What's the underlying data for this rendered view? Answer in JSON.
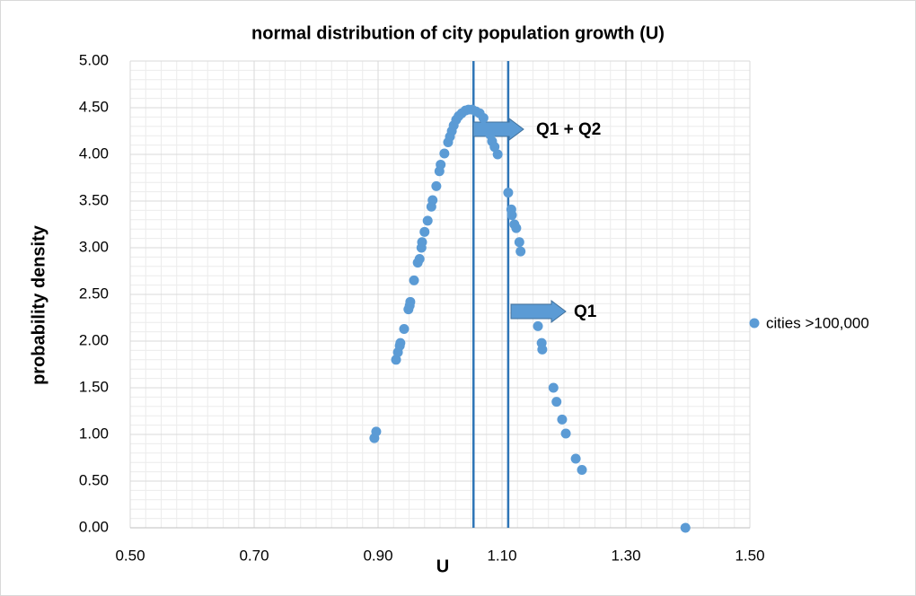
{
  "chart_data": {
    "type": "scatter",
    "title": "normal distribution of city population growth (U)",
    "x_label": "U",
    "y_label": "probability density",
    "series": [
      {
        "name": "cities >100,000",
        "color": "#5b9bd5",
        "x": [
          0.894,
          0.897,
          0.929,
          0.932,
          0.935,
          0.936,
          0.942,
          0.949,
          0.951,
          0.952,
          0.958,
          0.964,
          0.967,
          0.97,
          0.971,
          0.975,
          0.98,
          0.986,
          0.988,
          0.994,
          0.999,
          1.001,
          1.007,
          1.013,
          1.016,
          1.019,
          1.022,
          1.026,
          1.03,
          1.035,
          1.041,
          1.046,
          1.052,
          1.058,
          1.064,
          1.07,
          1.081,
          1.084,
          1.088,
          1.093,
          1.11,
          1.115,
          1.116,
          1.12,
          1.123,
          1.128,
          1.13,
          1.158,
          1.164,
          1.165,
          1.183,
          1.188,
          1.197,
          1.203,
          1.219,
          1.229,
          1.396
        ],
        "values": [
          0.96,
          1.03,
          1.8,
          1.88,
          1.95,
          1.98,
          2.13,
          2.34,
          2.38,
          2.42,
          2.65,
          2.84,
          2.88,
          3.0,
          3.06,
          3.17,
          3.29,
          3.44,
          3.51,
          3.66,
          3.82,
          3.89,
          4.01,
          4.13,
          4.19,
          4.25,
          4.31,
          4.37,
          4.41,
          4.44,
          4.47,
          4.48,
          4.48,
          4.46,
          4.44,
          4.39,
          4.21,
          4.14,
          4.08,
          4.0,
          3.59,
          3.41,
          3.35,
          3.25,
          3.21,
          3.06,
          2.96,
          2.16,
          1.98,
          1.91,
          1.5,
          1.35,
          1.16,
          1.01,
          0.74,
          0.62,
          0.0
        ]
      }
    ],
    "vlines": [
      1.054,
      1.11
    ],
    "vline_color": "#2e75b6",
    "annotations": [
      "Q1 + Q2",
      "Q1"
    ],
    "xlim": [
      0.5,
      1.5
    ],
    "xticks": [
      {
        "value": 0.5,
        "label": "0.50"
      },
      {
        "value": 0.7,
        "label": "0.70"
      },
      {
        "value": 0.9,
        "label": "0.90"
      },
      {
        "value": 1.1,
        "label": "1.10"
      },
      {
        "value": 1.3,
        "label": "1.30"
      },
      {
        "value": 1.5,
        "label": "1.50"
      }
    ],
    "ylim": [
      0,
      5
    ],
    "yticks": [
      {
        "value": 0,
        "label": "0.00"
      },
      {
        "value": 0.5,
        "label": "0.50"
      },
      {
        "value": 1,
        "label": "1.00"
      },
      {
        "value": 1.5,
        "label": "1.50"
      },
      {
        "value": 2,
        "label": "2.00"
      },
      {
        "value": 2.5,
        "label": "2.50"
      },
      {
        "value": 3,
        "label": "3.00"
      },
      {
        "value": 3.5,
        "label": "3.50"
      },
      {
        "value": 4,
        "label": "4.00"
      },
      {
        "value": 4.5,
        "label": "4.50"
      },
      {
        "value": 5,
        "label": "5.00"
      }
    ],
    "grid": true,
    "legend": "right"
  }
}
